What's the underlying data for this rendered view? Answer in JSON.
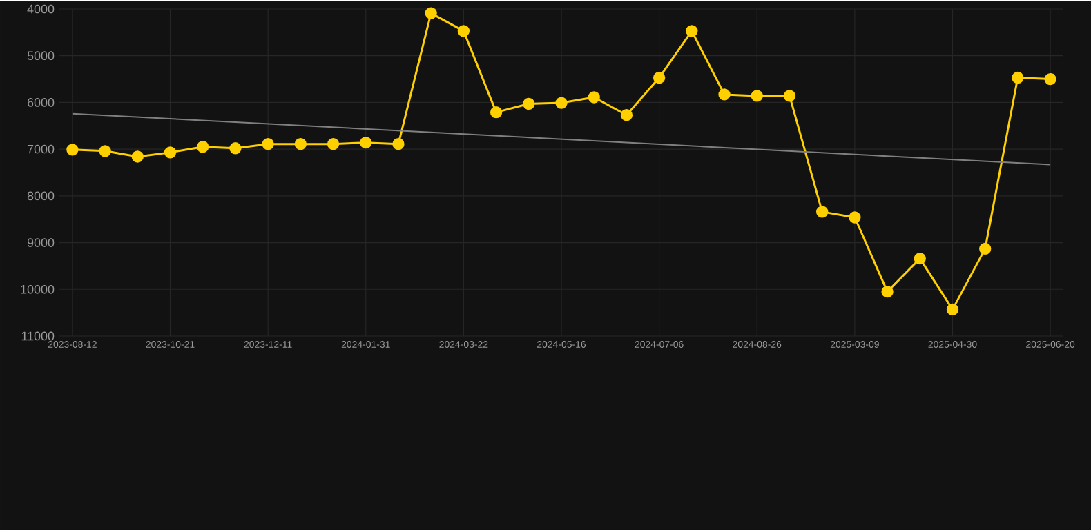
{
  "chart_data": {
    "type": "line",
    "categories": [
      "2023-08-12",
      null,
      null,
      "2023-10-21",
      null,
      null,
      "2023-12-11",
      null,
      null,
      "2024-01-31",
      null,
      null,
      "2024-03-22",
      null,
      null,
      "2024-05-16",
      null,
      null,
      "2024-07-06",
      null,
      null,
      "2024-08-26",
      null,
      null,
      "2025-03-09",
      null,
      null,
      "2025-04-30",
      null,
      null,
      "2025-06-20"
    ],
    "series": [
      {
        "color": "#ffd000",
        "marker": "circle",
        "values": [
          7010,
          7040,
          7160,
          7070,
          6950,
          6980,
          6890,
          6890,
          6890,
          6860,
          6890,
          4090,
          4470,
          6210,
          6030,
          6010,
          5890,
          6270,
          5470,
          4470,
          5830,
          5860,
          5860,
          8340,
          8460,
          10050,
          9340,
          10430,
          9130,
          5470,
          5500
        ]
      },
      {
        "type": "line",
        "color": "#808080",
        "marker": "none",
        "values": [
          6240,
          null,
          null,
          null,
          null,
          null,
          null,
          null,
          null,
          null,
          null,
          null,
          null,
          null,
          null,
          null,
          null,
          null,
          null,
          null,
          null,
          null,
          null,
          null,
          null,
          null,
          null,
          null,
          null,
          null,
          7330
        ]
      }
    ],
    "ylim": [
      11000,
      4000
    ],
    "yticks": [
      4000,
      5000,
      6000,
      7000,
      8000,
      9000,
      10000,
      11000
    ],
    "grid": true
  }
}
